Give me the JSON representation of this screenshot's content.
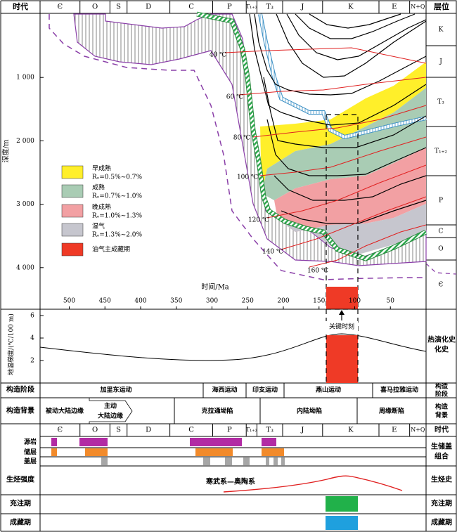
{
  "periods": [
    {
      "code": "Є",
      "start": 541,
      "end": 485
    },
    {
      "code": "O",
      "start": 485,
      "end": 443
    },
    {
      "code": "S",
      "start": 443,
      "end": 419
    },
    {
      "code": "D",
      "start": 419,
      "end": 359
    },
    {
      "code": "C",
      "start": 359,
      "end": 299
    },
    {
      "code": "P",
      "start": 299,
      "end": 252
    },
    {
      "code": "T₁₊₂",
      "start": 252,
      "end": 237
    },
    {
      "code": "T₃",
      "start": 237,
      "end": 201
    },
    {
      "code": "J",
      "start": 201,
      "end": 145
    },
    {
      "code": "K",
      "start": 145,
      "end": 66
    },
    {
      "code": "E",
      "start": 66,
      "end": 23
    },
    {
      "code": "N+Q",
      "start": 23,
      "end": 0
    }
  ],
  "labels": {
    "era_header": "时代",
    "strata_header": "层位",
    "depth_axis": "深度/m",
    "time_axis": "时间/Ma",
    "geotherm_axis": "地温梯度/(℃/100 m)",
    "key_moment": "关键时刻",
    "thermal_history": "热演化史",
    "tectonic_stage": "构造阶段",
    "tectonic_stage_right": "构造阶段",
    "tectonic_setting": "构造背景",
    "tectonic_setting_right": "构造背景",
    "source_rock": "源岩",
    "reservoir": "储层",
    "cap_rock": "盖层",
    "assemblage": "生储盖组合",
    "hc_intensity": "生烃强度",
    "hc_history": "生烃史",
    "hc_source": "寒武系—奥陶系",
    "charging": "充注期",
    "charging_right": "充注期",
    "accumulation": "成藏期",
    "accumulation_right": "成藏期"
  },
  "strata_column": [
    {
      "name": "K",
      "depth_to": 0
    },
    {
      "name": "J",
      "depth_to": 1000
    },
    {
      "name": "T₃",
      "depth_to": 1900
    },
    {
      "name": "T₁₊₂",
      "depth_to": 2600
    },
    {
      "name": "P",
      "depth_to": 3300
    },
    {
      "name": "C",
      "depth_to": 3550
    },
    {
      "name": "O",
      "depth_to": 4000
    },
    {
      "name": "Є",
      "depth_to": 4600
    }
  ],
  "depth_ticks": [
    "1 000",
    "2 000",
    "3 000",
    "4 000"
  ],
  "time_ticks": [
    "500",
    "450",
    "400",
    "350",
    "300",
    "250",
    "200",
    "150",
    "100",
    "50"
  ],
  "gradient_ticks": [
    "6",
    "4",
    "2"
  ],
  "isotherms": [
    "40 ℃",
    "60 ℃",
    "80 ℃",
    "100 ℃",
    "120 ℃",
    "140 ℃",
    "160 ℃"
  ],
  "legend": [
    {
      "name": "早成熟",
      "range": "Rₒ=0.5%~0.7%",
      "color": "#ffef2a"
    },
    {
      "name": "成熟",
      "range": "Rₒ=0.7%~1.0%",
      "color": "#a9ccb4"
    },
    {
      "name": "晚成熟",
      "range": "Rₒ=1.0%~1.3%",
      "color": "#f2a0a3"
    },
    {
      "name": "湿气",
      "range": "Rₒ=1.3%~2.0%",
      "color": "#c6c6ce"
    },
    {
      "name": "油气主成藏期",
      "range": "",
      "color": "#ef3a26"
    }
  ],
  "tectonic_stages": [
    "加里东运动",
    "海西运动",
    "印支运动",
    "燕山运动",
    "喜马拉雅运动"
  ],
  "tectonic_settings": [
    "被动大陆边缘",
    "主动\n大陆边缘",
    "克拉通坳陷",
    "内陆坳陷",
    "周缘断陷"
  ],
  "colors": {
    "source": "#b22ba4",
    "reservoir": "#f28a2a",
    "cap": "#a6a6a6",
    "charging": "#21b14a",
    "accumulation": "#1fa0de",
    "key_time": "#ef3a26",
    "burial_outline": "#8a3fa8"
  }
}
